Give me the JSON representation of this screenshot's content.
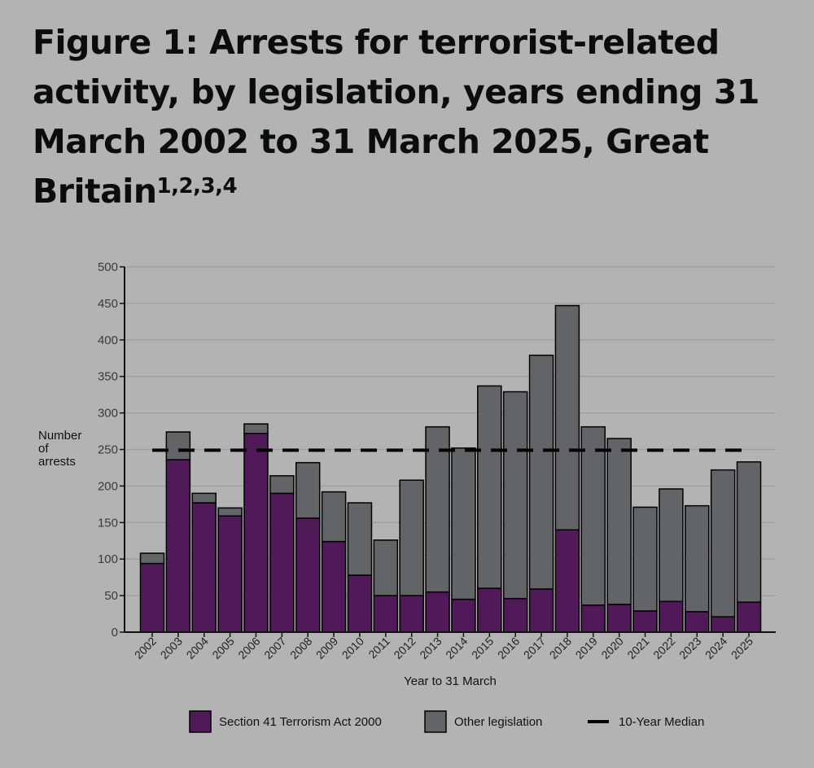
{
  "chart_data": {
    "type": "bar",
    "stacked": true,
    "title": "Figure 1: Arrests for terrorist-related activity, by legislation, years ending 31 March 2002 to 31 March 2025, Great Britain",
    "title_superscript": "1,2,3,4",
    "xlabel": "Year to 31 March",
    "ylabel": "Number of arrests",
    "ylim": [
      0,
      500
    ],
    "yticks": [
      0,
      50,
      100,
      150,
      200,
      250,
      300,
      350,
      400,
      450,
      500
    ],
    "grid": "horizontal",
    "legend_position": "bottom",
    "categories": [
      "2002",
      "2003",
      "2004",
      "2005",
      "2006",
      "2007",
      "2008",
      "2009",
      "2010",
      "2011",
      "2012",
      "2013",
      "2014",
      "2015",
      "2016",
      "2017",
      "2018",
      "2019",
      "2020",
      "2021",
      "2022",
      "2023",
      "2024",
      "2025"
    ],
    "series": [
      {
        "name": "Section 41 Terrorism Act 2000",
        "color": "#4f1a57",
        "values": [
          94,
          236,
          177,
          159,
          272,
          190,
          156,
          124,
          78,
          50,
          50,
          55,
          45,
          60,
          46,
          59,
          140,
          37,
          38,
          29,
          42,
          28,
          21,
          41
        ]
      },
      {
        "name": "Other legislation",
        "color": "#636466",
        "values": [
          14,
          38,
          13,
          11,
          13,
          24,
          76,
          68,
          99,
          76,
          158,
          226,
          207,
          277,
          283,
          320,
          307,
          244,
          227,
          142,
          154,
          145,
          201,
          192
        ]
      }
    ],
    "median": {
      "name": "10-Year Median",
      "value": 249
    }
  }
}
